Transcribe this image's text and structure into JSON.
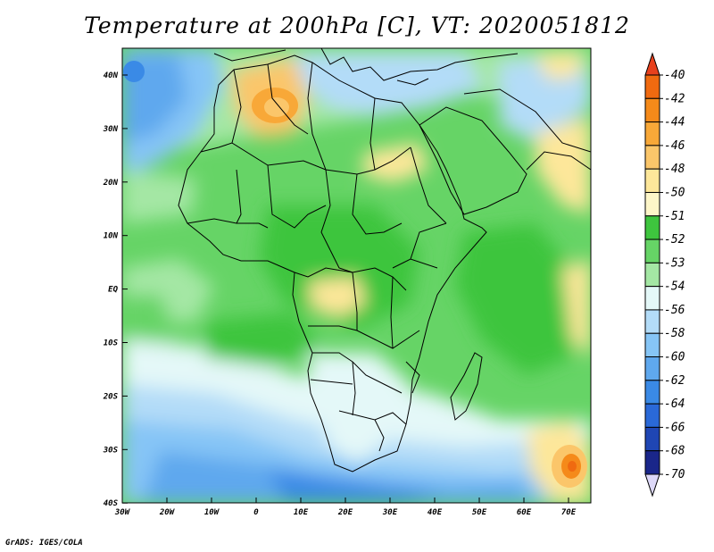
{
  "title": "Temperature at 200hPa [C], VT: 2020051812",
  "credit": "GrADS: IGES/COLA",
  "map": {
    "lat_ticks": [
      "40N",
      "30N",
      "20N",
      "10N",
      "EQ",
      "10S",
      "20S",
      "30S",
      "40S"
    ],
    "lon_ticks": [
      "30W",
      "20W",
      "10W",
      "0",
      "10E",
      "20E",
      "30E",
      "40E",
      "50E",
      "60E",
      "70E"
    ]
  },
  "colorbar": {
    "levels": [
      "-40",
      "-42",
      "-44",
      "-46",
      "-48",
      "-50",
      "-51",
      "-52",
      "-53",
      "-54",
      "-56",
      "-58",
      "-60",
      "-62",
      "-64",
      "-66",
      "-68",
      "-70"
    ],
    "colors": [
      "#e8411d",
      "#f06a10",
      "#f58a1a",
      "#f8a838",
      "#fbc66a",
      "#fde79a",
      "#fdf6c8",
      "#3ec53e",
      "#66d466",
      "#a4e7a4",
      "#e4f8f8",
      "#b3dcf8",
      "#86c5f6",
      "#5fa8ee",
      "#3a8ae6",
      "#2a69d8",
      "#1f46b4",
      "#1a268a",
      "#0b0c5c",
      "#ddd8f8"
    ]
  }
}
